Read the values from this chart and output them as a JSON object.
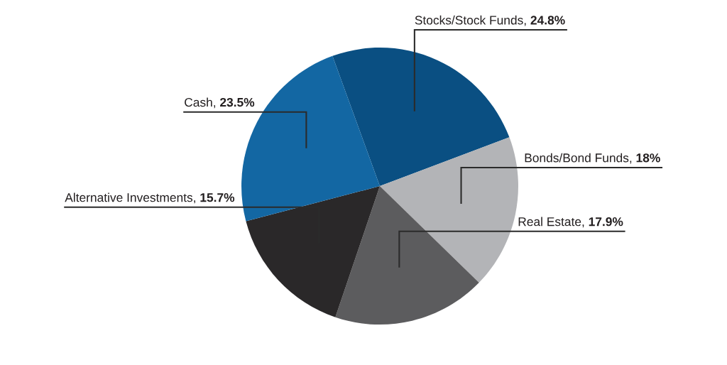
{
  "chart_data": {
    "type": "pie",
    "categories": [
      "Stocks/Stock Funds",
      "Bonds/Bond Funds",
      "Real Estate",
      "Alternative Investments",
      "Cash"
    ],
    "values": [
      24.8,
      18,
      17.9,
      15.7,
      23.5
    ],
    "colors": [
      "#0a4f82",
      "#b3b4b7",
      "#5c5c5e",
      "#2a2829",
      "#1367a3"
    ],
    "value_labels": [
      "24.8%",
      "18%",
      "17.9%",
      "15.7%",
      "23.5%"
    ]
  }
}
